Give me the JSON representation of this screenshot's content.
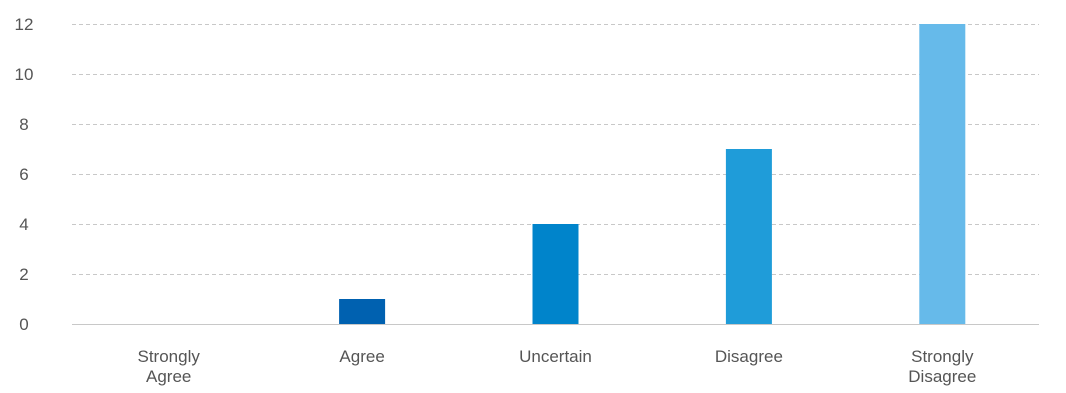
{
  "chart_data": {
    "type": "bar",
    "categories": [
      [
        "Strongly",
        "Agree"
      ],
      [
        "Agree"
      ],
      [
        "Uncertain"
      ],
      [
        "Disagree"
      ],
      [
        "Strongly",
        "Disagree"
      ]
    ],
    "values": [
      0,
      1,
      4,
      7,
      12
    ],
    "bar_colors": [
      "#0061b0",
      "#0061b0",
      "#0084cb",
      "#1f9cd9",
      "#66baea"
    ],
    "yticks": [
      0,
      2,
      4,
      6,
      8,
      10,
      12
    ],
    "ylim": [
      0,
      12
    ],
    "grid": true,
    "title": "",
    "xlabel": "",
    "ylabel": ""
  }
}
